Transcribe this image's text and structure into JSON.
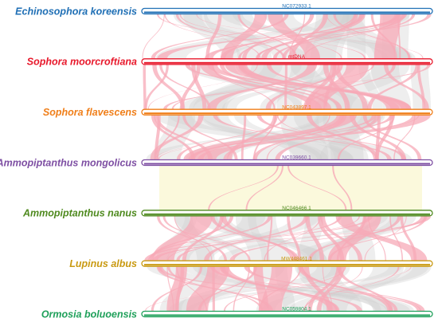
{
  "tracks": [
    {
      "species": "Echinosophora koreensis",
      "label": "NC072933.1",
      "color": "#1f6fb5"
    },
    {
      "species": "Sophora moorcroftiana",
      "label": "mtDNA",
      "color": "#e8192c"
    },
    {
      "species": "Sophora flavescens",
      "label": "NC043897.1",
      "color": "#f07f1a"
    },
    {
      "species": "Ammopiptanthus mongolicus",
      "label": "NC039660.1",
      "color": "#7e4fa3"
    },
    {
      "species": "Ammopiptanthus nanus",
      "label": "NC046466.1",
      "color": "#4f8a1f"
    },
    {
      "species": "Lupinus albus",
      "label": "MW448461.1",
      "color": "#c99a12"
    },
    {
      "species": "Ormosia boluoensis",
      "label": "NC059804.1",
      "color": "#1fa05a"
    }
  ]
}
